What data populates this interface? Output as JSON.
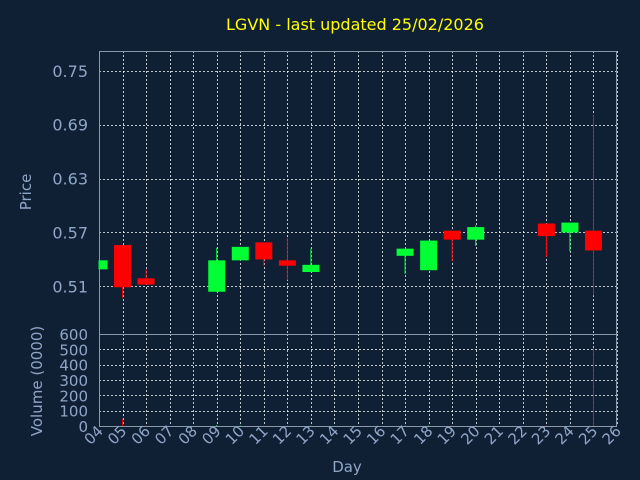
{
  "chart_data": {
    "type": "candlestick",
    "title": "LGVN - last updated 25/02/2026",
    "xlabel": "Day",
    "ylabel_price": "Price",
    "ylabel_volume": "Volume (0000)",
    "price_ticks": [
      "0.75",
      "0.69",
      "0.63",
      "0.57",
      "0.51"
    ],
    "price_tick_values": [
      0.75,
      0.69,
      0.63,
      0.57,
      0.51
    ],
    "price_ylim": [
      0.457,
      0.772
    ],
    "volume_ticks": [
      "600",
      "500",
      "400",
      "300",
      "200",
      "100",
      "0"
    ],
    "volume_tick_values": [
      600,
      500,
      400,
      300,
      200,
      100,
      0
    ],
    "volume_ylim": [
      0,
      600
    ],
    "x_ticks": [
      "04",
      "05",
      "06",
      "07",
      "08",
      "09",
      "10",
      "11",
      "12",
      "13",
      "14",
      "15",
      "16",
      "17",
      "18",
      "19",
      "20",
      "21",
      "22",
      "23",
      "24",
      "25",
      "26"
    ],
    "grid": true,
    "colors": {
      "background": "#0f2035",
      "title": "#ffff00",
      "axis_text": "#8fa6c7",
      "grid": "#ffffff",
      "up": "#00ff33",
      "down": "#ff0000",
      "axis_line": "#8899aa"
    },
    "candles": [
      {
        "day": 4,
        "open": 0.529,
        "close": 0.539,
        "high": 0.539,
        "low": 0.529
      },
      {
        "day": 5,
        "open": 0.556,
        "close": 0.509,
        "high": 0.556,
        "low": 0.497
      },
      {
        "day": 6,
        "open": 0.519,
        "close": 0.512,
        "high": 0.529,
        "low": 0.512
      },
      {
        "day": 9,
        "open": 0.504,
        "close": 0.539,
        "high": 0.553,
        "low": 0.504
      },
      {
        "day": 10,
        "open": 0.539,
        "close": 0.554,
        "high": 0.554,
        "low": 0.539
      },
      {
        "day": 11,
        "open": 0.559,
        "close": 0.54,
        "high": 0.559,
        "low": 0.533
      },
      {
        "day": 12,
        "open": 0.539,
        "close": 0.533,
        "high": 0.564,
        "low": 0.517
      },
      {
        "day": 13,
        "open": 0.526,
        "close": 0.534,
        "high": 0.552,
        "low": 0.526
      },
      {
        "day": 17,
        "open": 0.544,
        "close": 0.552,
        "high": 0.552,
        "low": 0.524
      },
      {
        "day": 18,
        "open": 0.528,
        "close": 0.561,
        "high": 0.561,
        "low": 0.528
      },
      {
        "day": 19,
        "open": 0.572,
        "close": 0.562,
        "high": 0.572,
        "low": 0.538
      },
      {
        "day": 20,
        "open": 0.562,
        "close": 0.576,
        "high": 0.578,
        "low": 0.555
      },
      {
        "day": 23,
        "open": 0.58,
        "close": 0.566,
        "high": 0.58,
        "low": 0.543
      },
      {
        "day": 24,
        "open": 0.57,
        "close": 0.581,
        "high": 0.581,
        "low": 0.549
      },
      {
        "day": 25,
        "open": 0.572,
        "close": 0.55,
        "high": 0.701,
        "low": 0.5
      }
    ],
    "volumes": [
      {
        "day": 4,
        "value": 0,
        "dir": "up"
      },
      {
        "day": 5,
        "value": 45,
        "dir": "down"
      },
      {
        "day": 6,
        "value": 4,
        "dir": "down"
      },
      {
        "day": 9,
        "value": 6,
        "dir": "up"
      },
      {
        "day": 10,
        "value": 3,
        "dir": "up"
      },
      {
        "day": 11,
        "value": 3,
        "dir": "down"
      },
      {
        "day": 12,
        "value": 3,
        "dir": "down"
      },
      {
        "day": 13,
        "value": 2,
        "dir": "up"
      },
      {
        "day": 17,
        "value": 2,
        "dir": "up"
      },
      {
        "day": 18,
        "value": 3,
        "dir": "up"
      },
      {
        "day": 19,
        "value": 3,
        "dir": "down"
      },
      {
        "day": 20,
        "value": 3,
        "dir": "up"
      },
      {
        "day": 23,
        "value": 3,
        "dir": "down"
      },
      {
        "day": 24,
        "value": 3,
        "dir": "up"
      },
      {
        "day": 25,
        "value": 510,
        "dir": "down"
      }
    ]
  }
}
